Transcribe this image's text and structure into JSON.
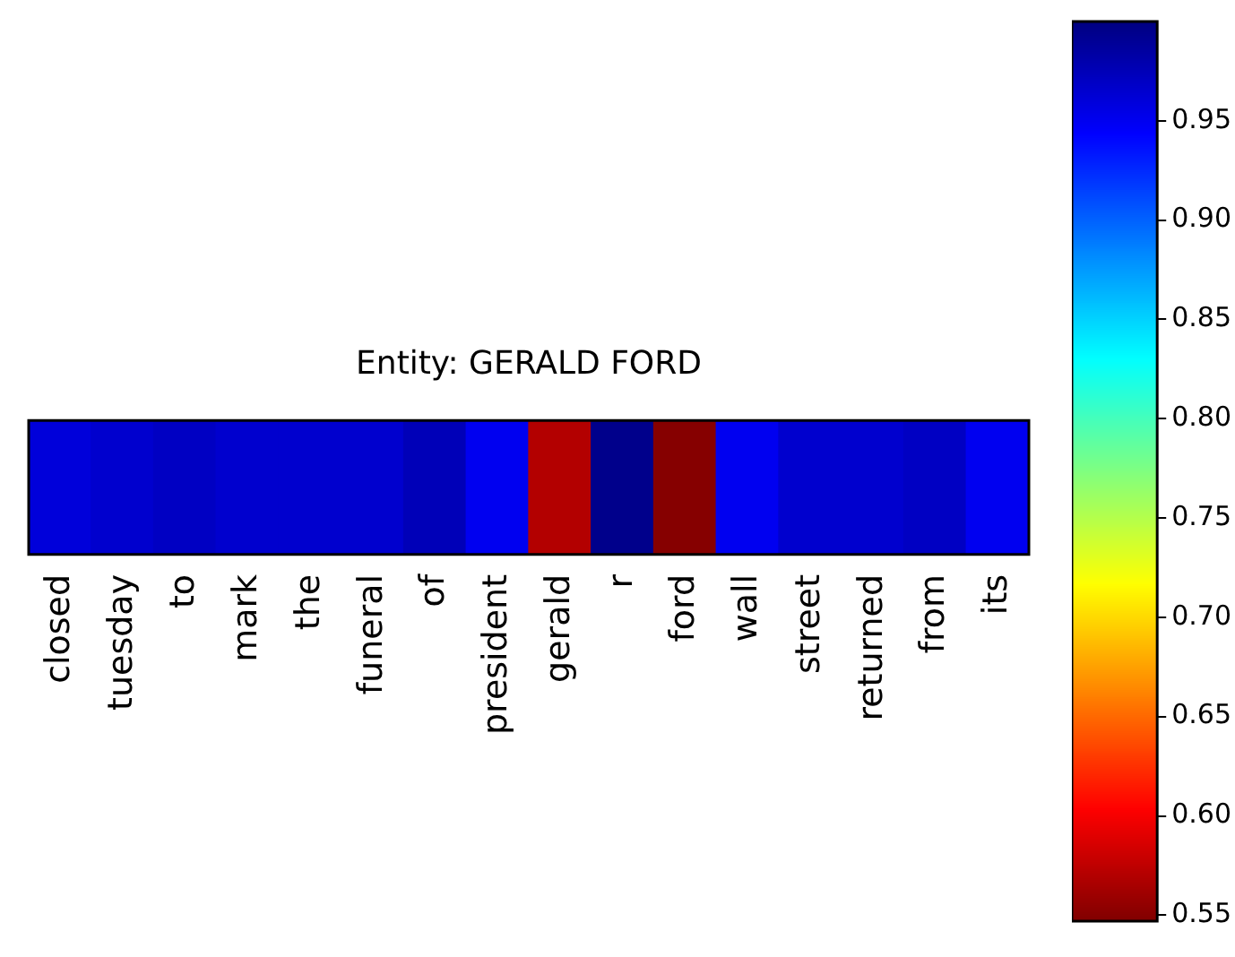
{
  "chart_data": {
    "type": "heatmap",
    "title": "Entity: GERALD FORD",
    "categories": [
      "closed",
      "tuesday",
      "to",
      "mark",
      "the",
      "funeral",
      "of",
      "president",
      "gerald",
      "r",
      "ford",
      "wall",
      "street",
      "returned",
      "from",
      "its"
    ],
    "y_categories": [
      null
    ],
    "cells": [
      [
        0.96,
        0.965,
        0.97,
        0.965,
        0.965,
        0.965,
        0.975,
        0.95,
        0.57,
        0.995,
        0.55,
        0.95,
        0.965,
        0.965,
        0.97,
        0.95
      ]
    ],
    "clim": [
      0.547,
      1.0
    ],
    "cticks": [
      0.55,
      {
        "value": 0.6,
        "label": "0.60"
      },
      0.65,
      {
        "value": 0.7,
        "label": "0.70"
      },
      0.75,
      {
        "value": 0.8,
        "label": "0.80"
      },
      0.85,
      {
        "value": 0.9,
        "label": "0.90"
      },
      0.95
    ]
  }
}
